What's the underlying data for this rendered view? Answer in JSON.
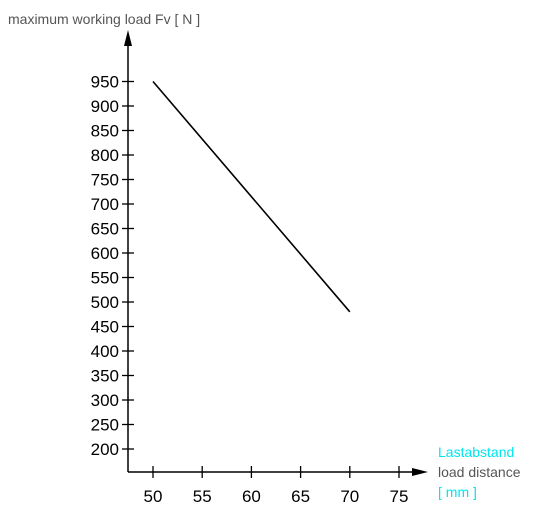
{
  "chart_data": {
    "type": "line",
    "ylabel": "maximum working load Fv [ N ]",
    "xlabel": {
      "line1": "Lastabstand",
      "line2": "load distance",
      "line3": "[ mm ]"
    },
    "x_ticks": [
      "50",
      "55",
      "60",
      "65",
      "70",
      "75"
    ],
    "y_ticks": [
      "950",
      "900",
      "850",
      "800",
      "750",
      "700",
      "650",
      "600",
      "550",
      "500",
      "450",
      "400",
      "350",
      "300",
      "250",
      "200"
    ],
    "xlim": [
      50,
      75
    ],
    "ylim": [
      200,
      950
    ],
    "series": [
      {
        "x": [
          50,
          70
        ],
        "y": [
          950,
          480
        ]
      }
    ],
    "colors": {
      "axis": "#000000",
      "line": "#000000",
      "ylabel": "#555555",
      "xlabel_de": "#00e5ee",
      "xlabel_en": "#555555",
      "xlabel_unit": "#00e5ee"
    }
  }
}
